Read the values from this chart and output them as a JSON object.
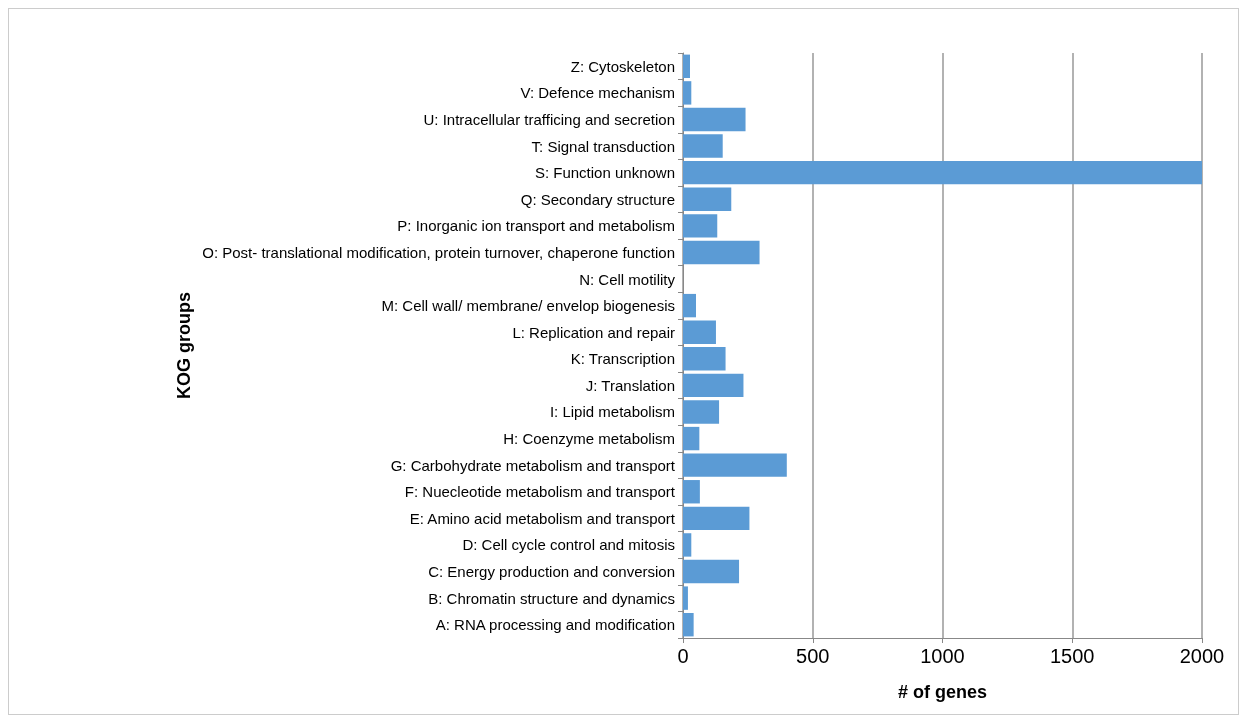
{
  "chart_data": {
    "type": "bar",
    "orientation": "horizontal",
    "xlabel": "# of genes",
    "ylabel": "KOG groups",
    "categories": [
      "Z: Cytoskeleton",
      "V: Defence mechanism",
      "U: Intracellular trafficing and secretion",
      "T: Signal transduction",
      "S: Function unknown",
      "Q: Secondary structure",
      "P: Inorganic ion transport and metabolism",
      "O: Post- translational modification, protein turnover, chaperone function",
      "N: Cell motility",
      "M: Cell wall/ membrane/ envelop biogenesis",
      "L: Replication and repair",
      "K: Transcription",
      "J: Translation",
      "I: Lipid metabolism",
      "H: Coenzyme metabolism",
      "G: Carbohydrate metabolism and transport",
      "F: Nuecleotide metabolism and transport",
      "E: Amino acid metabolism and transport",
      "D: Cell cycle control and mitosis",
      "C: Energy production and conversion",
      "B: Chromatin structure and dynamics",
      "A: RNA processing and modification"
    ],
    "values": [
      27,
      32,
      241,
      153,
      2000,
      186,
      132,
      295,
      0,
      50,
      127,
      164,
      233,
      139,
      63,
      400,
      65,
      256,
      32,
      216,
      19,
      41
    ],
    "color": "#5b9bd5",
    "xlim": [
      0,
      2000
    ],
    "xticks": [
      0,
      500,
      1000,
      1500,
      2000
    ],
    "grid": "x"
  }
}
